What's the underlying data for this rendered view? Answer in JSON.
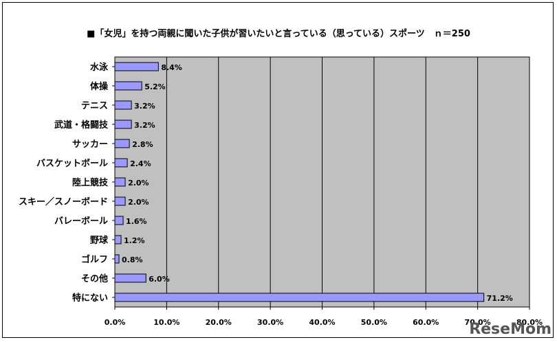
{
  "chart_data": {
    "type": "bar",
    "orientation": "horizontal",
    "title": "■「女児」を持つ両親に聞いた子供が習いたいと言っている（思っている）スポーツ　ｎ＝250",
    "categories": [
      "水泳",
      "体操",
      "テニス",
      "武道・格闘技",
      "サッカー",
      "バスケットボール",
      "陸上競技",
      "スキー／スノーボード",
      "バレーボール",
      "野球",
      "ゴルフ",
      "その他",
      "特にない"
    ],
    "values": [
      8.4,
      5.2,
      3.2,
      3.2,
      2.8,
      2.4,
      2.0,
      2.0,
      1.6,
      1.2,
      0.8,
      6.0,
      71.2
    ],
    "value_labels": [
      "8.4%",
      "5.2%",
      "3.2%",
      "3.2%",
      "2.8%",
      "2.4%",
      "2.0%",
      "2.0%",
      "1.6%",
      "1.2%",
      "0.8%",
      "6.0%",
      "71.2%"
    ],
    "xlim": [
      0,
      80
    ],
    "x_ticks": [
      "0.0%",
      "10.0%",
      "20.0%",
      "30.0%",
      "40.0%",
      "50.0%",
      "60.0%",
      "70.0%",
      "80.0%"
    ],
    "xlabel": "",
    "ylabel": "",
    "grid": "vertical",
    "legend": "none",
    "colors": {
      "plot_background": "#c0c0c0",
      "bar_fill": "#9999ff",
      "bar_stroke": "#000000",
      "gridline": "#000000"
    }
  },
  "watermark": "ReseMom"
}
